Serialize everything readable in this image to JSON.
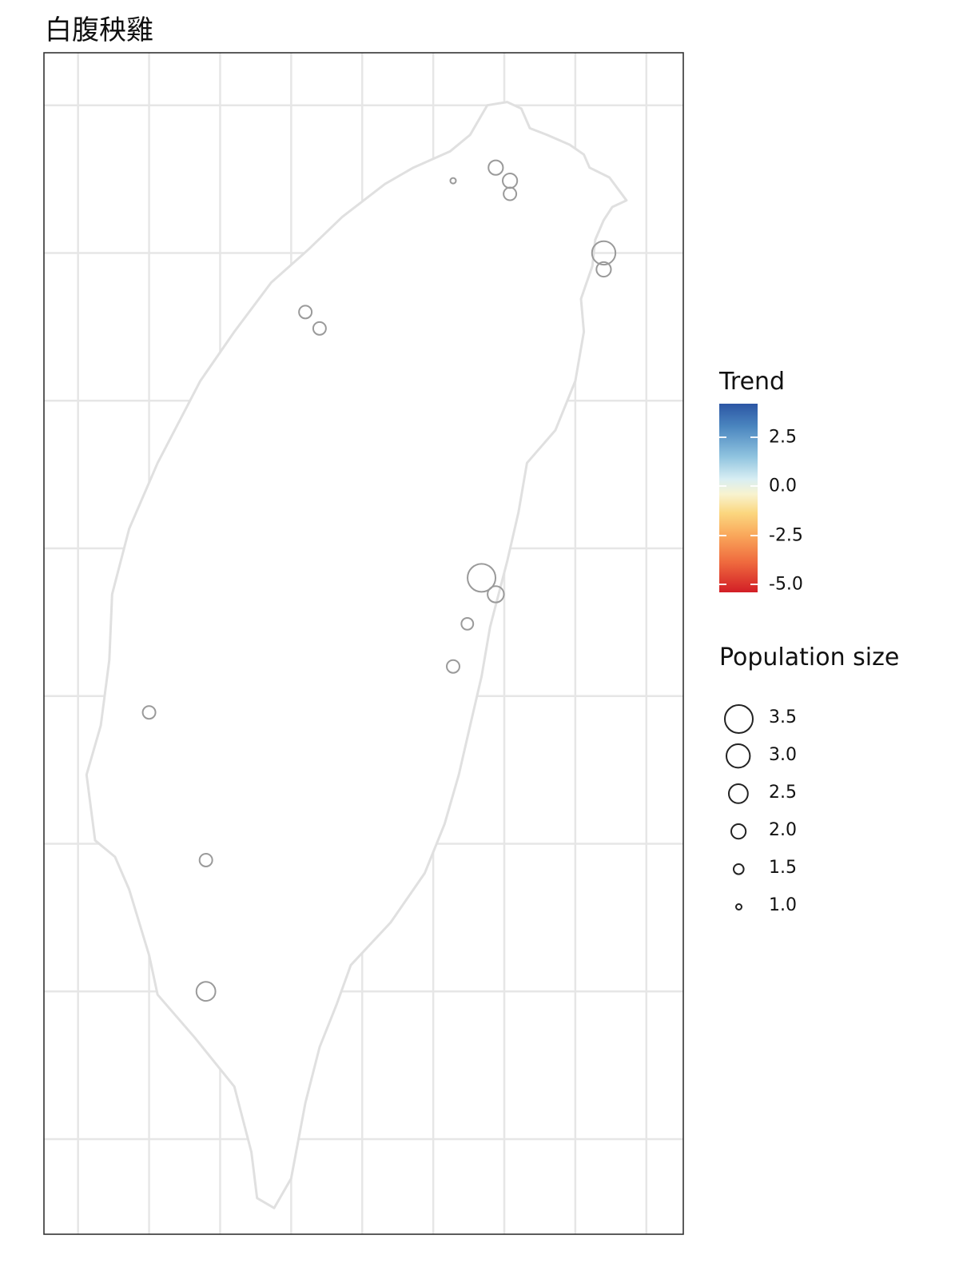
{
  "title": "白腹秧雞",
  "chart_data": {
    "type": "scatter",
    "title": "白腹秧雞",
    "xlabel": "",
    "ylabel": "",
    "xlim": [
      119.95,
      122.2
    ],
    "ylim": [
      21.85,
      25.45
    ],
    "grid": true,
    "grid_x": [
      120.07,
      120.32,
      120.57,
      120.82,
      121.07,
      121.32,
      121.57,
      121.82,
      122.07
    ],
    "grid_y": [
      22.14,
      22.59,
      23.04,
      23.49,
      23.94,
      24.39,
      24.84,
      25.29
    ],
    "points": [
      {
        "lon": 121.39,
        "lat": 25.06,
        "size": 1.0
      },
      {
        "lon": 121.54,
        "lat": 25.1,
        "size": 2.0
      },
      {
        "lon": 121.59,
        "lat": 25.06,
        "size": 2.0
      },
      {
        "lon": 121.59,
        "lat": 25.02,
        "size": 1.8
      },
      {
        "lon": 121.92,
        "lat": 24.84,
        "size": 3.0
      },
      {
        "lon": 121.92,
        "lat": 24.79,
        "size": 2.0
      },
      {
        "lon": 120.87,
        "lat": 24.66,
        "size": 1.8
      },
      {
        "lon": 120.92,
        "lat": 24.61,
        "size": 1.8
      },
      {
        "lon": 121.49,
        "lat": 23.85,
        "size": 3.5
      },
      {
        "lon": 121.54,
        "lat": 23.8,
        "size": 2.2
      },
      {
        "lon": 121.44,
        "lat": 23.71,
        "size": 1.7
      },
      {
        "lon": 121.39,
        "lat": 23.58,
        "size": 1.8
      },
      {
        "lon": 120.32,
        "lat": 23.44,
        "size": 1.8
      },
      {
        "lon": 120.52,
        "lat": 22.99,
        "size": 1.8
      },
      {
        "lon": 120.52,
        "lat": 22.59,
        "size": 2.5
      }
    ],
    "outline": [
      [
        121.51,
        25.29
      ],
      [
        121.58,
        25.3
      ],
      [
        121.63,
        25.28
      ],
      [
        121.66,
        25.22
      ],
      [
        121.72,
        25.2
      ],
      [
        121.8,
        25.17
      ],
      [
        121.85,
        25.14
      ],
      [
        121.87,
        25.1
      ],
      [
        121.94,
        25.07
      ],
      [
        122.0,
        25.0
      ],
      [
        121.95,
        24.98
      ],
      [
        121.92,
        24.94
      ],
      [
        121.89,
        24.88
      ],
      [
        121.88,
        24.8
      ],
      [
        121.84,
        24.7
      ],
      [
        121.85,
        24.6
      ],
      [
        121.82,
        24.45
      ],
      [
        121.75,
        24.3
      ],
      [
        121.65,
        24.2
      ],
      [
        121.62,
        24.05
      ],
      [
        121.58,
        23.9
      ],
      [
        121.52,
        23.7
      ],
      [
        121.49,
        23.55
      ],
      [
        121.45,
        23.4
      ],
      [
        121.41,
        23.25
      ],
      [
        121.36,
        23.1
      ],
      [
        121.29,
        22.95
      ],
      [
        121.17,
        22.8
      ],
      [
        121.03,
        22.67
      ],
      [
        120.98,
        22.55
      ],
      [
        120.92,
        22.42
      ],
      [
        120.87,
        22.25
      ],
      [
        120.82,
        22.02
      ],
      [
        120.76,
        21.93
      ],
      [
        120.7,
        21.96
      ],
      [
        120.68,
        22.1
      ],
      [
        120.62,
        22.3
      ],
      [
        120.48,
        22.45
      ],
      [
        120.35,
        22.58
      ],
      [
        120.32,
        22.7
      ],
      [
        120.25,
        22.9
      ],
      [
        120.2,
        23.0
      ],
      [
        120.13,
        23.05
      ],
      [
        120.1,
        23.25
      ],
      [
        120.15,
        23.4
      ],
      [
        120.18,
        23.6
      ],
      [
        120.19,
        23.8
      ],
      [
        120.25,
        24.0
      ],
      [
        120.35,
        24.2
      ],
      [
        120.5,
        24.45
      ],
      [
        120.62,
        24.6
      ],
      [
        120.75,
        24.75
      ],
      [
        120.88,
        24.85
      ],
      [
        121.0,
        24.95
      ],
      [
        121.15,
        25.05
      ],
      [
        121.25,
        25.1
      ],
      [
        121.38,
        25.15
      ],
      [
        121.45,
        25.2
      ],
      [
        121.51,
        25.29
      ]
    ]
  },
  "legend": {
    "trend": {
      "title": "Trend",
      "colors": [
        "#2c56a4",
        "#4a85bf",
        "#8fc3df",
        "#d8eef3",
        "#f8f3cf",
        "#fbd77f",
        "#f9a65a",
        "#ef6a3e",
        "#d21e26"
      ],
      "range": [
        -5.4,
        4.2
      ],
      "ticks": [
        {
          "value": 2.5,
          "label": "2.5"
        },
        {
          "value": 0.0,
          "label": "0.0"
        },
        {
          "value": -2.5,
          "label": "-2.5"
        },
        {
          "value": -5.0,
          "label": "-5.0"
        }
      ]
    },
    "size": {
      "title": "Population size",
      "entries": [
        {
          "value": 3.5,
          "label": "3.5"
        },
        {
          "value": 3.0,
          "label": "3.0"
        },
        {
          "value": 2.5,
          "label": "2.5"
        },
        {
          "value": 2.0,
          "label": "2.0"
        },
        {
          "value": 1.5,
          "label": "1.5"
        },
        {
          "value": 1.0,
          "label": "1.0"
        }
      ]
    }
  },
  "colors": {
    "grid": "#e6e6e6",
    "panel_border": "#333333",
    "coastline": "#e0e0e0",
    "point_stroke": "#9a9a9a",
    "legend_circle": "#222222"
  }
}
